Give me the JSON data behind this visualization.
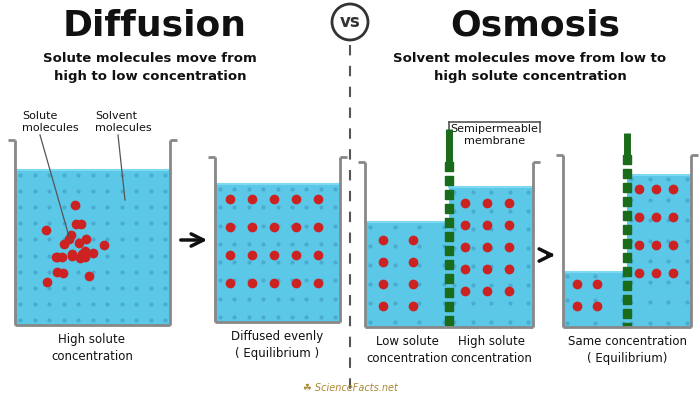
{
  "background_color": "#ffffff",
  "title_diffusion": "Diffusion",
  "title_osmosis": "Osmosis",
  "vs_text": "vs",
  "subtitle_diffusion": "Solute molecules move from\nhigh to low concentration",
  "subtitle_osmosis": "Solvent molecules move from low to\nhigh solute concentration",
  "water_color": "#5bc8e8",
  "solute_color": "#cc2222",
  "solvent_dot_color": "#4aabcf",
  "membrane_color": "#1a6b1a",
  "label_solute": "Solute\nmolecules",
  "label_solvent": "Solvent\nmolecules",
  "label_membrane": "Semipermeable\nmembrane",
  "caption_b1": "High solute\nconcentration",
  "caption_b2": "Diffused evenly\n( Equilibrium )",
  "caption_b3a": "Low solute\nconcentration",
  "caption_b3b": "High solute\nconcentration",
  "caption_b4": "Same concentration\n( Equilibrium)",
  "watermark": "☘ ScienceFacts.net",
  "wall_color": "#888888",
  "title_color": "#111111",
  "caption_color": "#111111",
  "subtitle_color": "#111111",
  "arrow_color": "#111111"
}
